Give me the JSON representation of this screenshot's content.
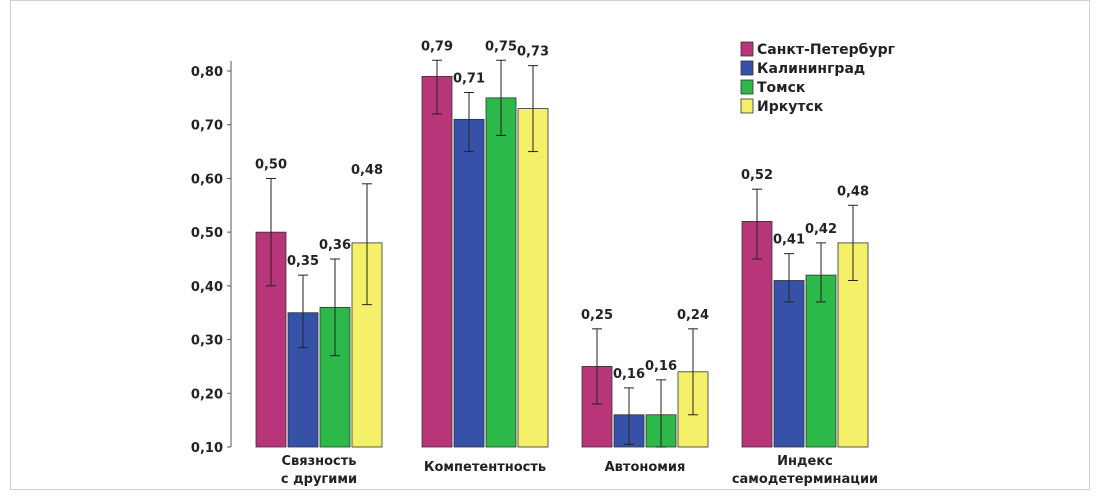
{
  "chart_data": {
    "type": "bar",
    "categories": [
      [
        "Связность",
        "с другими"
      ],
      [
        "Компетентность"
      ],
      [
        "Автономия"
      ],
      [
        "Индекс",
        "самодетерминации"
      ]
    ],
    "series": [
      {
        "name": "Санкт-Петербург",
        "color": "#b8357a",
        "values": [
          0.5,
          0.79,
          0.25,
          0.52
        ],
        "labels": [
          "0,50",
          "0,79",
          "0,25",
          "0,52"
        ],
        "err_low": [
          0.4,
          0.72,
          0.18,
          0.45
        ],
        "err_high": [
          0.6,
          0.82,
          0.32,
          0.58
        ]
      },
      {
        "name": "Калининград",
        "color": "#3652a8",
        "values": [
          0.35,
          0.71,
          0.16,
          0.41
        ],
        "labels": [
          "0,35",
          "0,71",
          "0,16",
          "0,41"
        ],
        "err_low": [
          0.285,
          0.65,
          0.105,
          0.37
        ],
        "err_high": [
          0.42,
          0.76,
          0.21,
          0.46
        ]
      },
      {
        "name": "Томск",
        "color": "#2db84a",
        "values": [
          0.36,
          0.75,
          0.16,
          0.42
        ],
        "labels": [
          "0,36",
          "0,75",
          "0,16",
          "0,42"
        ],
        "err_low": [
          0.27,
          0.68,
          0.1,
          0.37
        ],
        "err_high": [
          0.45,
          0.82,
          0.225,
          0.48
        ]
      },
      {
        "name": "Иркутск",
        "color": "#f4f06a",
        "values": [
          0.48,
          0.73,
          0.24,
          0.48
        ],
        "labels": [
          "0,48",
          "0,73",
          "0,24",
          "0,48"
        ],
        "err_low": [
          0.365,
          0.65,
          0.16,
          0.41
        ],
        "err_high": [
          0.59,
          0.81,
          0.32,
          0.55
        ]
      }
    ],
    "yticks": [
      0.1,
      0.2,
      0.3,
      0.4,
      0.5,
      0.6,
      0.7,
      0.8
    ],
    "ytick_labels": [
      "0,10",
      "0,20",
      "0,30",
      "0,40",
      "0,50",
      "0,60",
      "0,70",
      "0,80"
    ],
    "ylim": [
      0.1,
      0.82
    ],
    "error_bars": true,
    "legend_position": "top-right",
    "grid": false
  }
}
